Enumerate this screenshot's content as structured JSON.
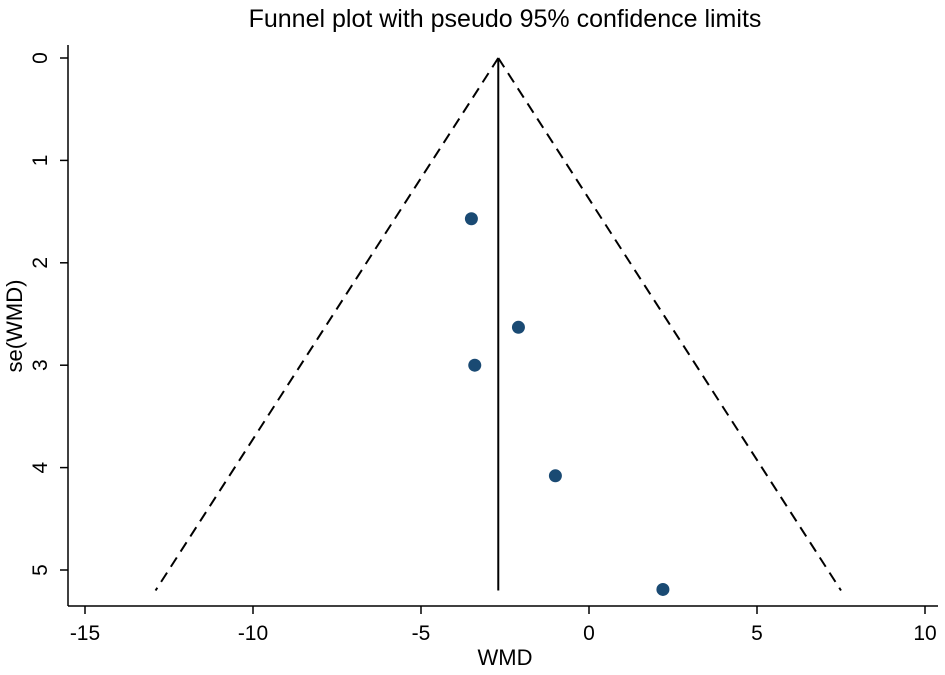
{
  "chart_data": {
    "type": "scatter",
    "title": "Funnel plot with pseudo 95% confidence limits",
    "xlabel": "WMD",
    "ylabel": "se(WMD)",
    "xlim": [
      -15,
      10
    ],
    "ylim": [
      0,
      5.2
    ],
    "y_axis_reversed": true,
    "x_ticks": [
      "-15",
      "-10",
      "-5",
      "0",
      "5",
      "10"
    ],
    "y_ticks": [
      "0",
      "1",
      "2",
      "3",
      "4",
      "5"
    ],
    "grid": false,
    "pooled_estimate": -2.7,
    "pseudo_95_limits": {
      "apex": {
        "x": -2.7,
        "y": 0
      },
      "lower_left": {
        "x": -12.9,
        "y": 5.2
      },
      "lower_right": {
        "x": 7.5,
        "y": 5.2
      }
    },
    "points": [
      {
        "x": -3.5,
        "y": 1.57
      },
      {
        "x": -2.1,
        "y": 2.63
      },
      {
        "x": -3.4,
        "y": 3.0
      },
      {
        "x": -1.0,
        "y": 4.08
      },
      {
        "x": 2.2,
        "y": 5.19
      }
    ],
    "point_color": "#1a4a73",
    "line_color": "#000000"
  }
}
